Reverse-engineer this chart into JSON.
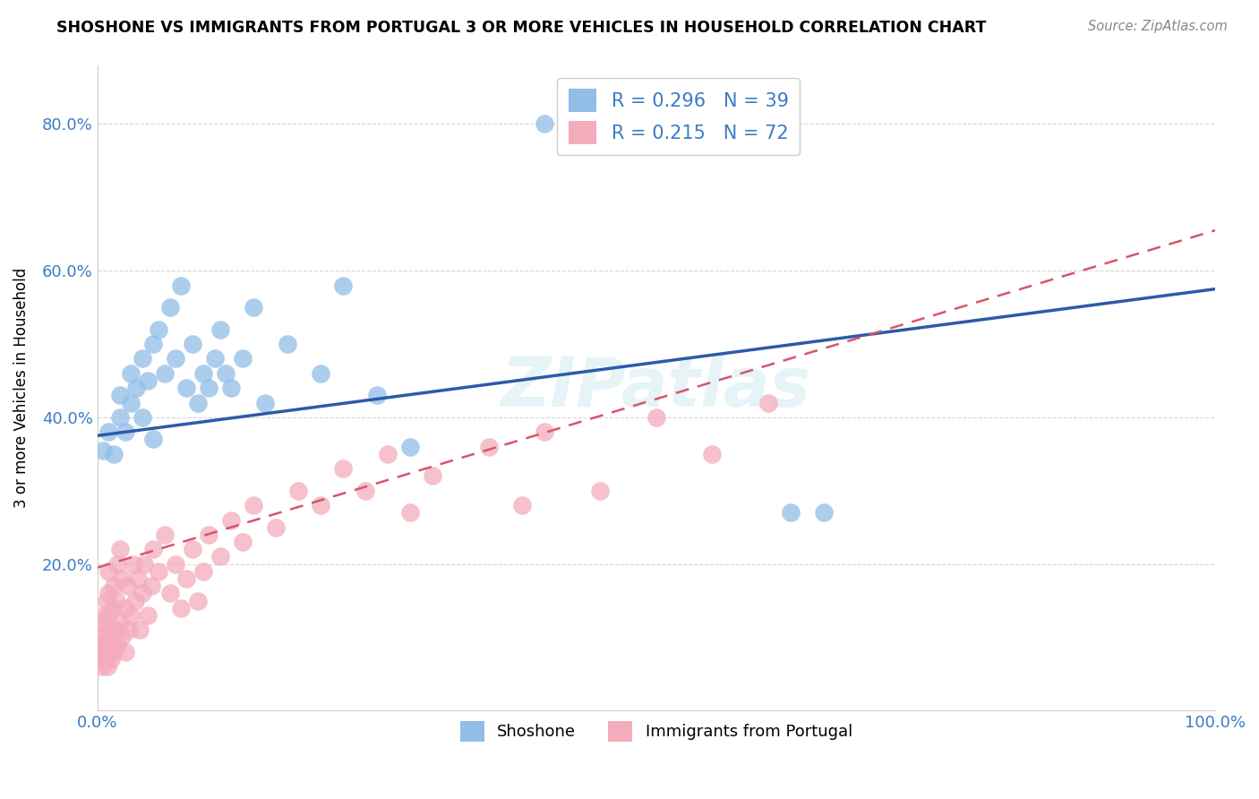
{
  "title": "SHOSHONE VS IMMIGRANTS FROM PORTUGAL 3 OR MORE VEHICLES IN HOUSEHOLD CORRELATION CHART",
  "source": "Source: ZipAtlas.com",
  "ylabel": "3 or more Vehicles in Household",
  "shoshone_label": "Shoshone",
  "portugal_label": "Immigrants from Portugal",
  "blue_color": "#92BDE8",
  "pink_color": "#F4ABBC",
  "blue_line_color": "#2B5BA8",
  "pink_line_color": "#D9546A",
  "R_color": "#3B7CC4",
  "watermark": "ZIPatlas",
  "shoshone_x": [
    0.005,
    0.01,
    0.015,
    0.02,
    0.02,
    0.025,
    0.03,
    0.03,
    0.035,
    0.04,
    0.04,
    0.045,
    0.05,
    0.05,
    0.055,
    0.06,
    0.065,
    0.07,
    0.075,
    0.08,
    0.085,
    0.09,
    0.095,
    0.1,
    0.105,
    0.11,
    0.115,
    0.12,
    0.13,
    0.14,
    0.15,
    0.17,
    0.2,
    0.22,
    0.25,
    0.28,
    0.4,
    0.62,
    0.65
  ],
  "shoshone_y": [
    0.355,
    0.38,
    0.35,
    0.4,
    0.43,
    0.38,
    0.42,
    0.46,
    0.44,
    0.4,
    0.48,
    0.45,
    0.37,
    0.5,
    0.52,
    0.46,
    0.55,
    0.48,
    0.58,
    0.44,
    0.5,
    0.42,
    0.46,
    0.44,
    0.48,
    0.52,
    0.46,
    0.44,
    0.48,
    0.55,
    0.42,
    0.5,
    0.46,
    0.58,
    0.43,
    0.36,
    0.8,
    0.27,
    0.27
  ],
  "portugal_x": [
    0.002,
    0.003,
    0.004,
    0.005,
    0.005,
    0.006,
    0.007,
    0.007,
    0.008,
    0.008,
    0.009,
    0.009,
    0.01,
    0.01,
    0.01,
    0.01,
    0.012,
    0.013,
    0.014,
    0.015,
    0.015,
    0.016,
    0.017,
    0.018,
    0.018,
    0.02,
    0.02,
    0.022,
    0.022,
    0.025,
    0.025,
    0.027,
    0.028,
    0.03,
    0.032,
    0.034,
    0.036,
    0.038,
    0.04,
    0.042,
    0.045,
    0.048,
    0.05,
    0.055,
    0.06,
    0.065,
    0.07,
    0.075,
    0.08,
    0.085,
    0.09,
    0.095,
    0.1,
    0.11,
    0.12,
    0.13,
    0.14,
    0.16,
    0.18,
    0.2,
    0.22,
    0.24,
    0.26,
    0.28,
    0.3,
    0.35,
    0.38,
    0.4,
    0.45,
    0.5,
    0.55,
    0.6
  ],
  "portugal_y": [
    0.07,
    0.09,
    0.06,
    0.08,
    0.12,
    0.1,
    0.07,
    0.13,
    0.09,
    0.15,
    0.06,
    0.11,
    0.08,
    0.13,
    0.16,
    0.19,
    0.07,
    0.1,
    0.14,
    0.08,
    0.17,
    0.11,
    0.15,
    0.09,
    0.2,
    0.12,
    0.22,
    0.1,
    0.18,
    0.08,
    0.14,
    0.17,
    0.11,
    0.13,
    0.2,
    0.15,
    0.18,
    0.11,
    0.16,
    0.2,
    0.13,
    0.17,
    0.22,
    0.19,
    0.24,
    0.16,
    0.2,
    0.14,
    0.18,
    0.22,
    0.15,
    0.19,
    0.24,
    0.21,
    0.26,
    0.23,
    0.28,
    0.25,
    0.3,
    0.28,
    0.33,
    0.3,
    0.35,
    0.27,
    0.32,
    0.36,
    0.28,
    0.38,
    0.3,
    0.4,
    0.35,
    0.42
  ],
  "xlim": [
    0.0,
    1.0
  ],
  "ylim": [
    0.0,
    0.88
  ],
  "yticks": [
    0.2,
    0.4,
    0.6,
    0.8
  ],
  "ytick_labels": [
    "20.0%",
    "40.0%",
    "60.0%",
    "80.0%"
  ],
  "xticks": [
    0.0,
    0.25,
    0.5,
    0.75,
    1.0
  ],
  "xtick_labels": [
    "0.0%",
    "",
    "",
    "",
    "100.0%"
  ]
}
